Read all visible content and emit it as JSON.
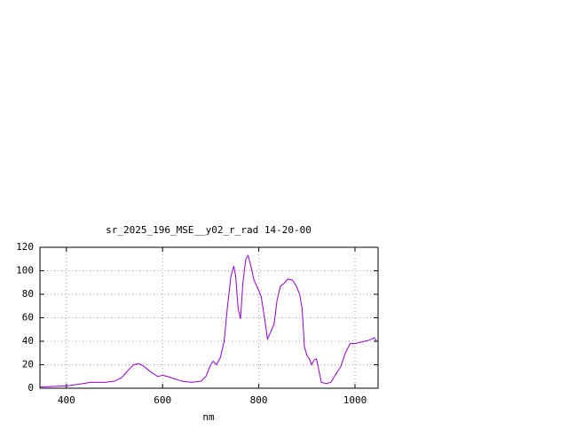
{
  "chart_data": {
    "type": "line",
    "title": "sr_2025_196_MSE__y02_r_rad 14-20-00",
    "x_label": "nm",
    "x": [
      345,
      400,
      420,
      450,
      480,
      500,
      515,
      530,
      540,
      550,
      560,
      575,
      590,
      600,
      610,
      625,
      640,
      660,
      680,
      690,
      700,
      705,
      712,
      720,
      728,
      735,
      742,
      748,
      752,
      757,
      762,
      767,
      773,
      778,
      783,
      790,
      798,
      805,
      812,
      818,
      825,
      832,
      838,
      845,
      852,
      860,
      870,
      878,
      885,
      890,
      895,
      900,
      905,
      910,
      915,
      920,
      925,
      930,
      940,
      950,
      960,
      970,
      980,
      990,
      1000,
      1010,
      1020,
      1030,
      1040,
      1045
    ],
    "series": [
      {
        "color": "#9400d3",
        "values": [
          1,
          2,
          3,
          5,
          5,
          6,
          9,
          16,
          20,
          21,
          19,
          14,
          10,
          11,
          10,
          8,
          6,
          5,
          6,
          10,
          20,
          23,
          20,
          26,
          40,
          70,
          95,
          104,
          95,
          68,
          59,
          90,
          110,
          113,
          105,
          92,
          85,
          78,
          60,
          42,
          48,
          55,
          75,
          87,
          89,
          93,
          92,
          87,
          80,
          68,
          35,
          28,
          25,
          20,
          24,
          25,
          15,
          5,
          4,
          5,
          12,
          18,
          30,
          38,
          38,
          39,
          40,
          41,
          43,
          40
        ]
      }
    ],
    "xlim": [
      345,
      1048
    ],
    "ylim": [
      0,
      120
    ],
    "xticks": [
      400,
      600,
      800,
      1000
    ],
    "yticks": [
      0,
      20,
      40,
      60,
      80,
      100,
      120
    ],
    "grid": true
  }
}
